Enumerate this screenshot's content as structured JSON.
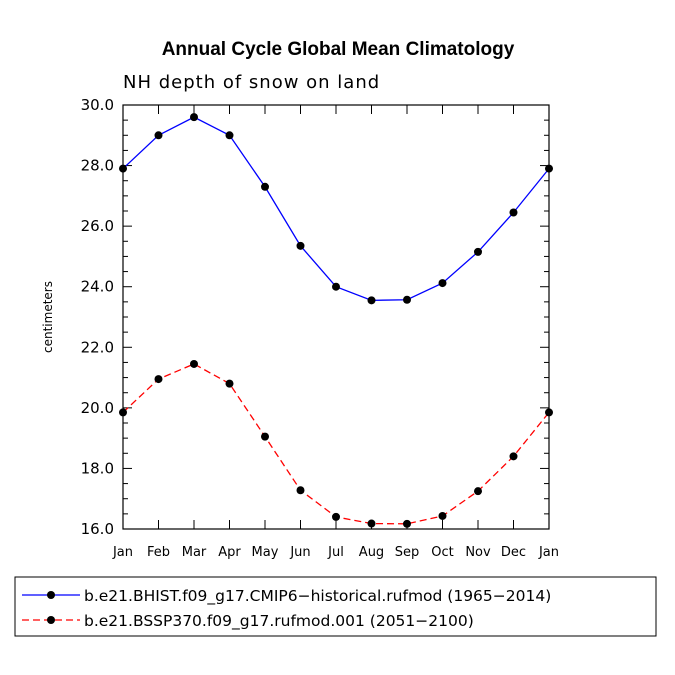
{
  "chart_data": {
    "type": "line",
    "title": "Annual Cycle Global Mean Climatology",
    "subtitle": "NH depth of snow on land",
    "xlabel": "",
    "ylabel": "centimeters",
    "categories": [
      "Jan",
      "Feb",
      "Mar",
      "Apr",
      "May",
      "Jun",
      "Jul",
      "Aug",
      "Sep",
      "Oct",
      "Nov",
      "Dec",
      "Jan"
    ],
    "ylim": [
      16.0,
      30.0
    ],
    "yticks": [
      "16.0",
      "18.0",
      "20.0",
      "22.0",
      "24.0",
      "26.0",
      "28.0",
      "30.0"
    ],
    "series": [
      {
        "name": "b.e21.BHIST.f09_g17.CMIP6-historical.rufmod (1965-2014)",
        "legend_label": "b.e21.BHIST.f09_g17.CMIP6−historical.rufmod (1965−2014)",
        "color": "#0000ff",
        "dash": "solid",
        "values": [
          27.9,
          29.0,
          29.6,
          29.0,
          27.3,
          25.35,
          24.0,
          23.55,
          23.57,
          24.12,
          25.15,
          26.45,
          27.9
        ]
      },
      {
        "name": "b.e21.BSSP370.f09_g17.rufmod.001 (2051-2100)",
        "legend_label": "b.e21.BSSP370.f09_g17.rufmod.001 (2051−2100)",
        "color": "#ff0000",
        "dash": "dashed",
        "values": [
          19.85,
          20.95,
          21.45,
          20.8,
          19.05,
          17.28,
          16.4,
          16.18,
          16.17,
          16.43,
          17.25,
          18.4,
          19.85
        ]
      }
    ],
    "legend_position": "bottom"
  }
}
